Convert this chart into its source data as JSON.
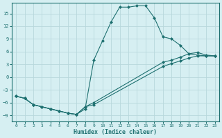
{
  "xlabel": "Humidex (Indice chaleur)",
  "background_color": "#d6eff2",
  "grid_color": "#b8d8dc",
  "line_color": "#1e7070",
  "xlim": [
    -0.5,
    23.5
  ],
  "ylim": [
    -10.5,
    17.5
  ],
  "yticks": [
    -9,
    -6,
    -3,
    0,
    3,
    6,
    9,
    12,
    15
  ],
  "xticks": [
    0,
    1,
    2,
    3,
    4,
    5,
    6,
    7,
    8,
    9,
    10,
    11,
    12,
    13,
    14,
    15,
    16,
    17,
    18,
    19,
    20,
    21,
    22,
    23
  ],
  "series1_x": [
    0,
    1,
    2,
    3,
    4,
    5,
    6,
    7,
    8,
    9,
    10,
    11,
    12,
    13,
    14,
    15,
    16,
    17,
    18,
    19,
    20,
    21,
    22,
    23
  ],
  "series1_y": [
    -4.5,
    -5.0,
    -6.5,
    -7.0,
    -7.5,
    -8.0,
    -8.5,
    -8.8,
    -7.5,
    4.0,
    8.5,
    13.0,
    16.5,
    16.5,
    16.8,
    16.8,
    14.0,
    9.5,
    9.0,
    7.5,
    5.5,
    5.2,
    5.0,
    5.0
  ],
  "series2_x": [
    0,
    1,
    2,
    3,
    4,
    5,
    6,
    7,
    8,
    9,
    17,
    18,
    19,
    20,
    21,
    22,
    23
  ],
  "series2_y": [
    -4.5,
    -5.0,
    -6.5,
    -7.0,
    -7.5,
    -8.0,
    -8.5,
    -8.8,
    -7.0,
    -6.5,
    2.5,
    3.2,
    3.8,
    4.5,
    5.0,
    5.0,
    5.0
  ],
  "series3_x": [
    0,
    1,
    2,
    3,
    4,
    5,
    6,
    7,
    8,
    9,
    17,
    18,
    19,
    20,
    21,
    22,
    23
  ],
  "series3_y": [
    -4.5,
    -5.0,
    -6.5,
    -7.0,
    -7.5,
    -8.0,
    -8.5,
    -8.8,
    -7.0,
    -6.0,
    3.5,
    4.0,
    4.7,
    5.5,
    5.8,
    5.2,
    5.0
  ]
}
